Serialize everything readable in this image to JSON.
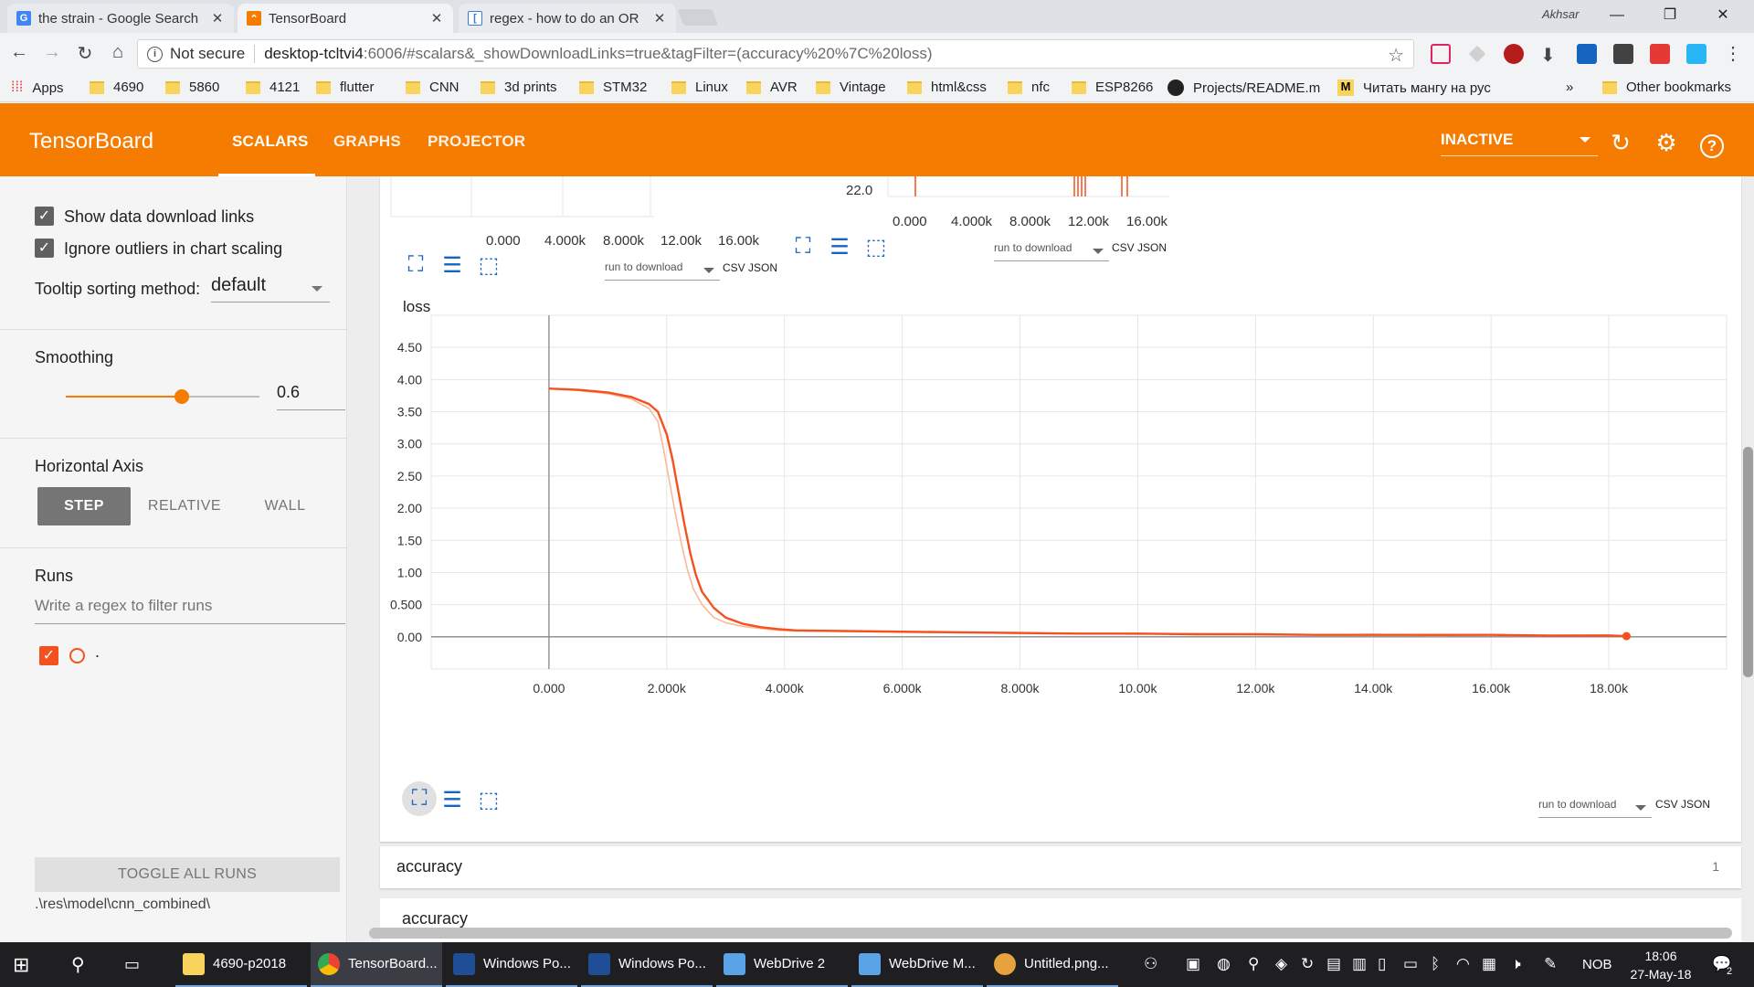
{
  "browser": {
    "tabs": [
      {
        "title": "the strain - Google Search",
        "favicon": "G"
      },
      {
        "title": "TensorBoard",
        "favicon": "tb"
      },
      {
        "title": "regex - how to do an OR",
        "favicon": "so"
      }
    ],
    "profile": "Akhsar",
    "omnibox": {
      "security": "Not secure",
      "host": "desktop-tcltvi4",
      "path": ":6006/#scalars&_showDownloadLinks=true&tagFilter=(accuracy%20%7C%20loss)"
    },
    "bookmarks": [
      "Apps",
      "4690",
      "5860",
      "4121",
      "flutter",
      "CNN",
      "3d prints",
      "STM32",
      "Linux",
      "AVR",
      "Vintage",
      "html&css",
      "nfc",
      "ESP8266",
      "Projects/README.m",
      "Читать мангу на рус"
    ],
    "bookmarks_more": "»",
    "other_bookmarks": "Other bookmarks"
  },
  "tensorboard": {
    "brand": "TensorBoard",
    "tabs": [
      "SCALARS",
      "GRAPHS",
      "PROJECTOR"
    ],
    "selected_tab": "SCALARS",
    "run_status": "INACTIVE"
  },
  "sidebar": {
    "show_download_links": "Show data download links",
    "ignore_outliers": "Ignore outliers in chart scaling",
    "tooltip_label": "Tooltip sorting method:",
    "tooltip_value": "default",
    "smoothing_label": "Smoothing",
    "smoothing_value": "0.6",
    "smoothing_fraction": 0.6,
    "horizontal_axis_label": "Horizontal Axis",
    "axis_options": [
      "STEP",
      "RELATIVE",
      "WALL"
    ],
    "axis_selected": "STEP",
    "runs_label": "Runs",
    "runs_filter_placeholder": "Write a regex to filter runs",
    "run_name": ".",
    "toggle_all": "TOGGLE ALL RUNS",
    "logdir": ".\\res\\model\\cnn_combined\\"
  },
  "upper_charts": {
    "left_ticks": [
      "0.000",
      "4.000k",
      "8.000k",
      "12.00k",
      "16.00k"
    ],
    "right_ticks": [
      "0.000",
      "4.000k",
      "8.000k",
      "12.00k",
      "16.00k"
    ],
    "right_y_tick": "22.0",
    "download_label": "run to download",
    "csv": "CSV",
    "json": "JSON"
  },
  "loss_card": {
    "title": "loss",
    "download_label": "run to download",
    "csv": "CSV",
    "json": "JSON"
  },
  "chart_data": {
    "type": "line",
    "title": "loss",
    "xlabel": "",
    "ylabel": "",
    "xlim": [
      -2000,
      20000
    ],
    "ylim": [
      -0.5,
      5.0
    ],
    "x_ticks": [
      0,
      2000,
      4000,
      6000,
      8000,
      10000,
      12000,
      14000,
      16000,
      18000
    ],
    "x_tick_labels": [
      "0.000",
      "2.000k",
      "4.000k",
      "6.000k",
      "8.000k",
      "10.00k",
      "12.00k",
      "14.00k",
      "16.00k",
      "18.00k"
    ],
    "y_ticks": [
      0,
      0.5,
      1.0,
      1.5,
      2.0,
      2.5,
      3.0,
      3.5,
      4.0,
      4.5
    ],
    "y_tick_labels": [
      "0.00",
      "0.500",
      "1.00",
      "1.50",
      "2.00",
      "2.50",
      "3.00",
      "3.50",
      "4.00",
      "4.50"
    ],
    "grid": true,
    "series": [
      {
        "color": "#f4511e",
        "smoothed": true,
        "x": [
          0,
          500,
          1000,
          1400,
          1700,
          1850,
          2000,
          2100,
          2200,
          2300,
          2400,
          2500,
          2600,
          2800,
          3000,
          3300,
          3600,
          3900,
          4200,
          5000,
          6000,
          7000,
          8000,
          9000,
          10000,
          11000,
          12000,
          13000,
          14000,
          15000,
          16000,
          17000,
          18000,
          18300
        ],
        "y": [
          3.86,
          3.84,
          3.8,
          3.73,
          3.62,
          3.5,
          3.15,
          2.75,
          2.25,
          1.75,
          1.3,
          0.95,
          0.7,
          0.45,
          0.3,
          0.2,
          0.15,
          0.12,
          0.1,
          0.09,
          0.08,
          0.07,
          0.06,
          0.05,
          0.05,
          0.04,
          0.04,
          0.03,
          0.03,
          0.03,
          0.03,
          0.02,
          0.02,
          0.01
        ]
      },
      {
        "color": "#f9b99a",
        "smoothed": false,
        "x": [
          0,
          500,
          1000,
          1400,
          1700,
          1850,
          1950,
          2050,
          2150,
          2250,
          2350,
          2450,
          2600,
          2800,
          3000,
          3300,
          3600,
          3900,
          4200,
          5000,
          6000,
          7000,
          8000,
          9000,
          10000,
          11000,
          12000,
          13000,
          14000,
          15000,
          16000,
          17000,
          18000,
          18300
        ],
        "y": [
          3.86,
          3.83,
          3.78,
          3.7,
          3.55,
          3.35,
          2.9,
          2.4,
          1.9,
          1.45,
          1.05,
          0.75,
          0.5,
          0.3,
          0.22,
          0.16,
          0.13,
          0.1,
          0.09,
          0.09,
          0.07,
          0.07,
          0.05,
          0.05,
          0.04,
          0.05,
          0.03,
          0.03,
          0.04,
          0.02,
          0.03,
          0.02,
          0.03,
          0.01
        ]
      }
    ]
  },
  "accuracy_card": {
    "title": "accuracy",
    "count": "1",
    "sub_title": "accuracy"
  },
  "taskbar": {
    "items": [
      "4690-p2018",
      "TensorBoard...",
      "Windows Po...",
      "Windows Po...",
      "WebDrive 2",
      "WebDrive M...",
      "Untitled.png..."
    ],
    "lang": "NOB",
    "time": "18:06",
    "date": "27-May-18",
    "notifications": "2"
  }
}
